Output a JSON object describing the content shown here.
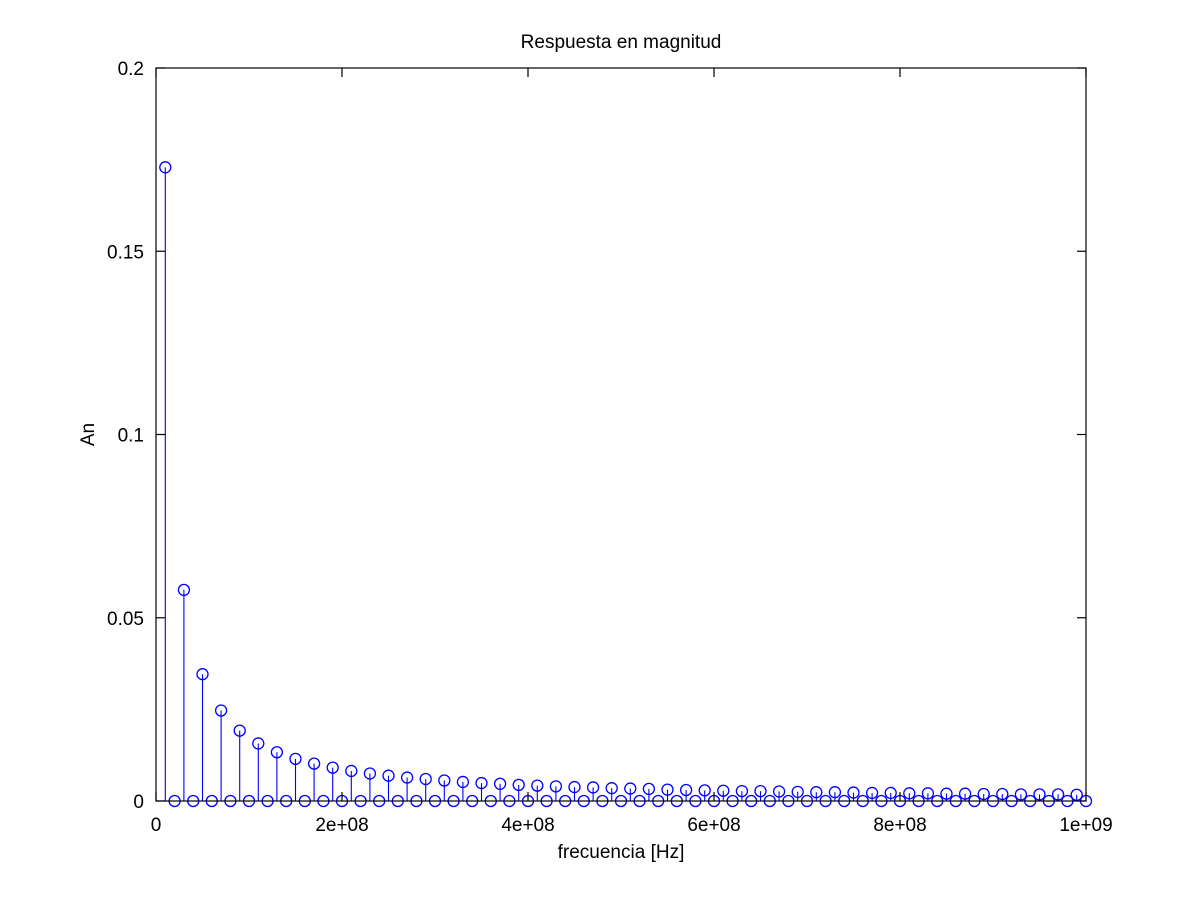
{
  "chart_data": {
    "type": "stem",
    "title": "Respuesta en magnitud",
    "xlabel": "frecuencia [Hz]",
    "ylabel": "An",
    "xlim": [
      0,
      1000000000
    ],
    "ylim": [
      0,
      0.2
    ],
    "grid": false,
    "x_ticks": [
      {
        "value": 0,
        "label": "0"
      },
      {
        "value": 200000000,
        "label": "2e+08"
      },
      {
        "value": 400000000,
        "label": "4e+08"
      },
      {
        "value": 600000000,
        "label": "6e+08"
      },
      {
        "value": 800000000,
        "label": "8e+08"
      },
      {
        "value": 1000000000,
        "label": "1e+09"
      }
    ],
    "y_ticks": [
      {
        "value": 0,
        "label": "0"
      },
      {
        "value": 0.05,
        "label": "0.05"
      },
      {
        "value": 0.1,
        "label": "0.1"
      },
      {
        "value": 0.15,
        "label": "0.15"
      },
      {
        "value": 0.2,
        "label": "0.2"
      }
    ],
    "color": "#0000ff",
    "series": [
      {
        "x": [
          10000000,
          20000000,
          30000000,
          40000000,
          50000000,
          60000000,
          70000000,
          80000000,
          90000000,
          100000000,
          110000000,
          120000000,
          130000000,
          140000000,
          150000000,
          160000000,
          170000000,
          180000000,
          190000000,
          200000000,
          210000000,
          220000000,
          230000000,
          240000000,
          250000000,
          260000000,
          270000000,
          280000000,
          290000000,
          300000000,
          310000000,
          320000000,
          330000000,
          340000000,
          350000000,
          360000000,
          370000000,
          380000000,
          390000000,
          400000000,
          410000000,
          420000000,
          430000000,
          440000000,
          450000000,
          460000000,
          470000000,
          480000000,
          490000000,
          500000000,
          510000000,
          520000000,
          530000000,
          540000000,
          550000000,
          560000000,
          570000000,
          580000000,
          590000000,
          600000000,
          610000000,
          620000000,
          630000000,
          640000000,
          650000000,
          660000000,
          670000000,
          680000000,
          690000000,
          700000000,
          710000000,
          720000000,
          730000000,
          740000000,
          750000000,
          760000000,
          770000000,
          780000000,
          790000000,
          800000000,
          810000000,
          820000000,
          830000000,
          840000000,
          850000000,
          860000000,
          870000000,
          880000000,
          890000000,
          900000000,
          910000000,
          920000000,
          930000000,
          940000000,
          950000000,
          960000000,
          970000000,
          980000000,
          990000000,
          1000000000
        ],
        "values": [
          0.1729,
          0,
          0.0576,
          0,
          0.0346,
          0,
          0.0247,
          0,
          0.0192,
          0,
          0.0157,
          0,
          0.0133,
          0,
          0.0115,
          0,
          0.0102,
          0,
          0.0091,
          0,
          0.0082,
          0,
          0.0075,
          0,
          0.0069,
          0,
          0.0064,
          0,
          0.006,
          0,
          0.0056,
          0,
          0.0052,
          0,
          0.0049,
          0,
          0.0047,
          0,
          0.0044,
          0,
          0.0042,
          0,
          0.004,
          0,
          0.0038,
          0,
          0.0037,
          0,
          0.0035,
          0,
          0.0034,
          0,
          0.0033,
          0,
          0.0031,
          0,
          0.003,
          0,
          0.0029,
          0,
          0.0028,
          0,
          0.0027,
          0,
          0.0027,
          0,
          0.0026,
          0,
          0.0025,
          0,
          0.0024,
          0,
          0.0024,
          0,
          0.0023,
          0,
          0.0022,
          0,
          0.0022,
          0,
          0.0021,
          0,
          0.0021,
          0,
          0.002,
          0,
          0.002,
          0,
          0.0019,
          0,
          0.0019,
          0,
          0.0018,
          0,
          0.0018,
          0,
          0.0018,
          0,
          0.0017,
          0
        ]
      }
    ]
  }
}
